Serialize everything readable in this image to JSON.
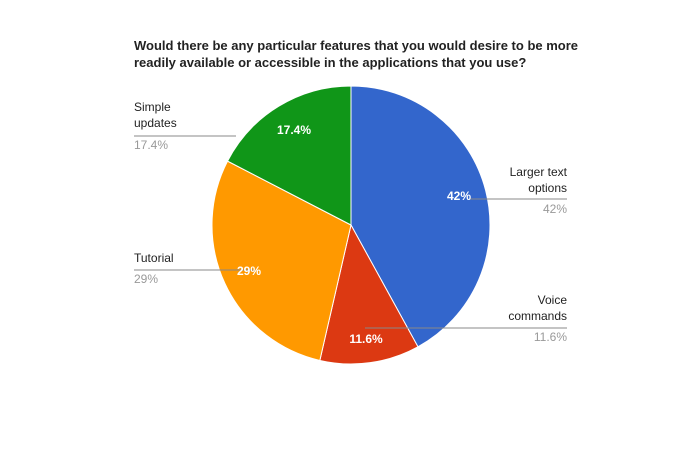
{
  "chart_data": {
    "type": "pie",
    "title": "Would there be any particular features that you would desire to be more readily available or accessible in the applications that you use?",
    "slices": [
      {
        "label": "Larger text options",
        "label_lines": [
          "Larger text",
          "options"
        ],
        "value": 42,
        "display": "42%",
        "color": "#3366cc"
      },
      {
        "label": "Voice commands",
        "label_lines": [
          "Voice",
          "commands"
        ],
        "value": 11.6,
        "display": "11.6%",
        "color": "#dc3912"
      },
      {
        "label": "Tutorial",
        "label_lines": [
          "Tutorial"
        ],
        "value": 29,
        "display": "29%",
        "color": "#ff9900"
      },
      {
        "label": "Simple updates",
        "label_lines": [
          "Simple",
          "updates"
        ],
        "value": 17.4,
        "display": "17.4%",
        "color": "#109618"
      }
    ]
  }
}
